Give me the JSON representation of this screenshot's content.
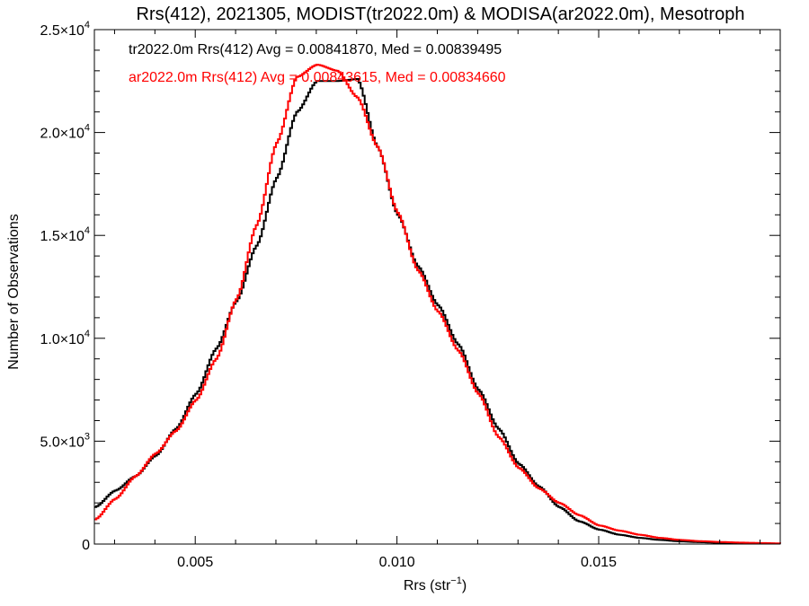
{
  "chart_data": {
    "type": "line",
    "title": "Rrs(412), 2021305, MODIST(tr2022.0m) & MODISA(ar2022.0m), Mesotroph",
    "xlabel": "Rrs (str",
    "xlabel_sup": "−1",
    "xlabel_close": ")",
    "ylabel": "Number of Observations",
    "xlim": [
      0.0025,
      0.0195
    ],
    "ylim": [
      0,
      25000
    ],
    "grid": false,
    "x_ticks": [
      {
        "value": 0.005,
        "label": "0.005"
      },
      {
        "value": 0.01,
        "label": "0.010"
      },
      {
        "value": 0.015,
        "label": "0.015"
      }
    ],
    "y_ticks": [
      {
        "value": 0,
        "mant": "0",
        "exp": ""
      },
      {
        "value": 5000,
        "mant": "5.0×10",
        "exp": "3"
      },
      {
        "value": 10000,
        "mant": "1.0×10",
        "exp": "4"
      },
      {
        "value": 15000,
        "mant": "1.5×10",
        "exp": "4"
      },
      {
        "value": 20000,
        "mant": "2.0×10",
        "exp": "4"
      },
      {
        "value": 25000,
        "mant": "2.5×10",
        "exp": "4"
      }
    ],
    "annotations": [
      {
        "text": "tr2022.0m Rrs(412) Avg = 0.00841870, Med = 0.00839495",
        "color": "#000000"
      },
      {
        "text": "ar2022.0m Rrs(412) Avg = 0.00843615, Med = 0.00834660",
        "color": "#ff0000"
      }
    ],
    "series": [
      {
        "color": "#000000",
        "x": [
          0.0025,
          0.003,
          0.0035,
          0.004,
          0.0045,
          0.005,
          0.0055,
          0.006,
          0.0065,
          0.007,
          0.0075,
          0.008,
          0.0085,
          0.009,
          0.0095,
          0.01,
          0.0105,
          0.011,
          0.0115,
          0.012,
          0.0125,
          0.013,
          0.0135,
          0.014,
          0.0145,
          0.015,
          0.0155,
          0.016,
          0.0165,
          0.017,
          0.0175,
          0.018,
          0.0185,
          0.019,
          0.0195
        ],
        "y": [
          1800,
          2600,
          3300,
          4300,
          5600,
          7300,
          9500,
          11800,
          14500,
          17800,
          21000,
          22500,
          22500,
          22600,
          19300,
          16000,
          13500,
          11600,
          9700,
          7500,
          5600,
          3900,
          2800,
          1800,
          1100,
          700,
          450,
          300,
          200,
          130,
          90,
          60,
          40,
          30,
          20
        ]
      },
      {
        "color": "#ff0000",
        "x": [
          0.0025,
          0.003,
          0.0035,
          0.004,
          0.0045,
          0.005,
          0.0055,
          0.006,
          0.0065,
          0.007,
          0.0075,
          0.008,
          0.0085,
          0.009,
          0.0095,
          0.01,
          0.0105,
          0.011,
          0.0115,
          0.012,
          0.0125,
          0.013,
          0.0135,
          0.014,
          0.0145,
          0.015,
          0.0155,
          0.016,
          0.0165,
          0.017,
          0.0175,
          0.018,
          0.0185,
          0.019,
          0.0195
        ],
        "y": [
          1200,
          2200,
          3300,
          4400,
          5500,
          7000,
          9000,
          11900,
          15500,
          19500,
          22700,
          23300,
          23000,
          21700,
          19300,
          16100,
          13300,
          11300,
          9400,
          7300,
          5200,
          3700,
          2700,
          2000,
          1400,
          900,
          650,
          450,
          300,
          200,
          140,
          100,
          70,
          50,
          30
        ]
      }
    ]
  }
}
